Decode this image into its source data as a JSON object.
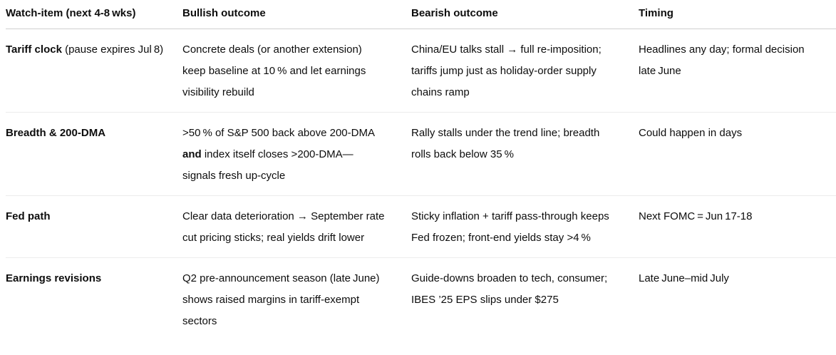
{
  "page": {
    "background_color": "#ffffff",
    "text_color": "#0d0d0d",
    "header_divider_color": "#cfcfcf",
    "row_divider_color": "#ececec"
  },
  "table": {
    "columns": [
      "Watch-item (next 4-8 wks)",
      "Bullish outcome",
      "Bearish outcome",
      "Timing"
    ],
    "rows": [
      {
        "item": [
          {
            "t": "Tariff clock",
            "b": true
          },
          {
            "t": " (pause expires Jul 8)"
          }
        ],
        "bullish": [
          {
            "t": "Concrete deals (or another extension) keep baseline at 10 % and let earnings visibility rebuild"
          }
        ],
        "bearish": [
          {
            "t": "China/EU talks stall → full re-imposition; tariffs jump just as holiday-order supply chains ramp"
          }
        ],
        "timing": [
          {
            "t": "Headlines any day; formal decision late June"
          }
        ]
      },
      {
        "item": [
          {
            "t": "Breadth & 200-DMA",
            "b": true
          }
        ],
        "bullish": [
          {
            "t": ">50 % of S&P 500 back above 200-DMA "
          },
          {
            "t": "and",
            "b": true
          },
          {
            "t": " index itself closes >200-DMA—signals fresh up-cycle"
          }
        ],
        "bearish": [
          {
            "t": "Rally stalls under the trend line; breadth rolls back below 35 %"
          }
        ],
        "timing": [
          {
            "t": "Could happen in days"
          }
        ]
      },
      {
        "item": [
          {
            "t": "Fed path",
            "b": true
          }
        ],
        "bullish": [
          {
            "t": "Clear data deterioration → September rate cut pricing sticks; real yields drift lower"
          }
        ],
        "bearish": [
          {
            "t": "Sticky inflation + tariff pass-through keeps Fed frozen; front-end yields stay >4 %"
          }
        ],
        "timing": [
          {
            "t": "Next FOMC = Jun 17-18"
          }
        ]
      },
      {
        "item": [
          {
            "t": "Earnings revisions",
            "b": true
          }
        ],
        "bullish": [
          {
            "t": "Q2 pre-announcement season (late June) shows raised margins in tariff-exempt sectors"
          }
        ],
        "bearish": [
          {
            "t": "Guide-downs broaden to tech, consumer; IBES ’25 EPS slips under $275"
          }
        ],
        "timing": [
          {
            "t": "Late June–mid July"
          }
        ]
      }
    ]
  }
}
